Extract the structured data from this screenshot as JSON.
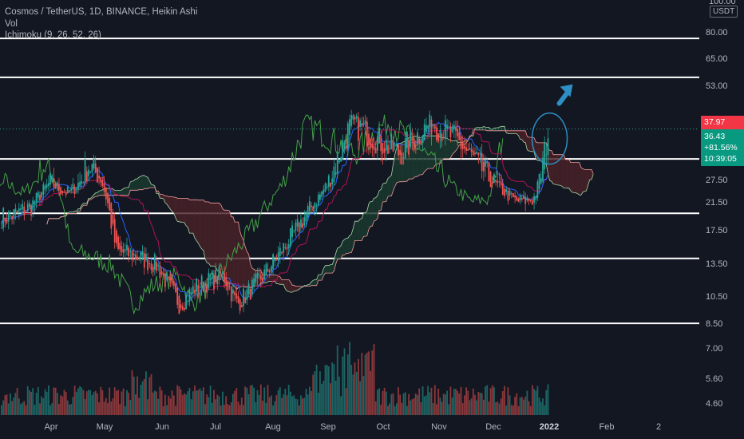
{
  "legend": {
    "title": "Cosmos / TetherUS, 1D, BINANCE, Heikin Ashi",
    "vol": "Vol",
    "ichimoku": "Ichimoku (9, 26, 52, 26)"
  },
  "axis": {
    "unit": "USDT",
    "top_label": "100.00",
    "price_ticks": [
      "80.00",
      "65.00",
      "53.00",
      "37.97",
      "27.50",
      "21.50",
      "17.50",
      "13.50",
      "10.50",
      "8.50",
      "7.00",
      "5.60",
      "4.60"
    ],
    "time_ticks": [
      "Apr",
      "May",
      "Jun",
      "Jul",
      "Aug",
      "Sep",
      "Oct",
      "Nov",
      "Dec",
      "2022",
      "Feb",
      "2"
    ]
  },
  "price_tags": {
    "high": "37.97",
    "last": "36.43",
    "change": "+81.56%",
    "countdown": "10:39:05"
  },
  "colors": {
    "background": "#131722",
    "up": "#26a69a",
    "down": "#ef5350",
    "lagging": "#43a047",
    "base_line": "#ad1457",
    "conversion_line": "#2962ff",
    "cloud_bull": "#1b3a2f",
    "cloud_bear": "#4a2228",
    "annotation": "#2d8fc4"
  },
  "chart_data": {
    "type": "candlestick",
    "style": "Heikin Ashi",
    "symbol": "Cosmos / TetherUS",
    "interval": "1D",
    "exchange": "BINANCE",
    "y_scale": "log",
    "ylim": [
      4.3,
      100
    ],
    "x_labels": [
      "Apr",
      "May",
      "Jun",
      "Jul",
      "Aug",
      "Sep",
      "Oct",
      "Nov",
      "Dec",
      "2022",
      "Feb",
      "2"
    ],
    "monthly_path": [
      {
        "x": "2021-03-25",
        "close": 19.5
      },
      {
        "x": "2021-04-05",
        "close": 21.0
      },
      {
        "x": "2021-04-15",
        "close": 27.0
      },
      {
        "x": "2021-04-25",
        "close": 24.0
      },
      {
        "x": "2021-05-05",
        "close": 30.0
      },
      {
        "x": "2021-05-12",
        "close": 28.0
      },
      {
        "x": "2021-05-20",
        "close": 15.0
      },
      {
        "x": "2021-05-30",
        "close": 14.5
      },
      {
        "x": "2021-06-10",
        "close": 13.5
      },
      {
        "x": "2021-06-22",
        "close": 10.0
      },
      {
        "x": "2021-07-01",
        "close": 11.5
      },
      {
        "x": "2021-07-15",
        "close": 12.5
      },
      {
        "x": "2021-07-22",
        "close": 10.0
      },
      {
        "x": "2021-08-05",
        "close": 12.5
      },
      {
        "x": "2021-08-20",
        "close": 17.0
      },
      {
        "x": "2021-09-01",
        "close": 22.0
      },
      {
        "x": "2021-09-10",
        "close": 29.0
      },
      {
        "x": "2021-09-20",
        "close": 38.0
      },
      {
        "x": "2021-10-01",
        "close": 35.0
      },
      {
        "x": "2021-10-15",
        "close": 32.0
      },
      {
        "x": "2021-11-01",
        "close": 38.0
      },
      {
        "x": "2021-11-15",
        "close": 34.0
      },
      {
        "x": "2021-12-01",
        "close": 28.0
      },
      {
        "x": "2021-12-15",
        "close": 22.0
      },
      {
        "x": "2021-12-24",
        "close": 22.5
      },
      {
        "x": "2022-01-01",
        "close": 36.4
      }
    ],
    "horizontal_levels": [
      77.0,
      57.0,
      31.0,
      20.0,
      14.2,
      8.6
    ],
    "last_price": 36.43,
    "session_high": 37.97,
    "change_pct": "+81.56%"
  }
}
